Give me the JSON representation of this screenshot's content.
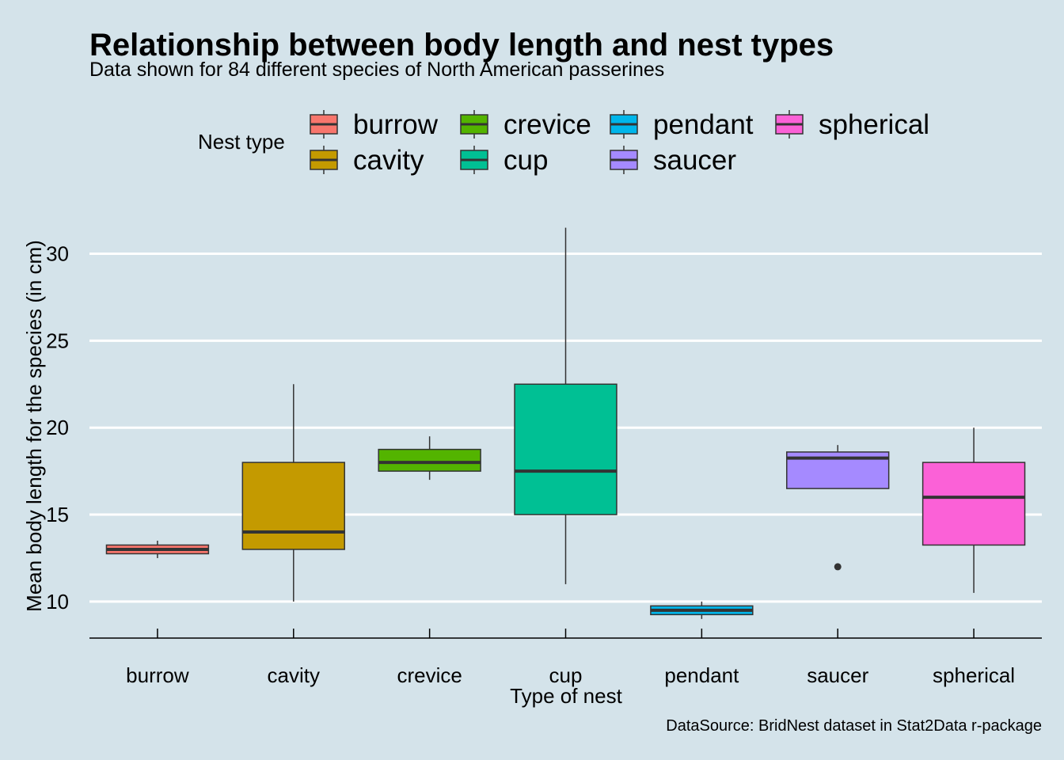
{
  "chart_data": {
    "type": "boxplot",
    "title": "Relationship between body length and nest types",
    "subtitle": "Data shown for 84 different species of North American passerines",
    "caption": "DataSource: BridNest dataset in Stat2Data r-package",
    "xlabel": "Type of nest",
    "ylabel": "Mean body length for the species (in cm)",
    "ylim": [
      7.9,
      32.3
    ],
    "y_ticks": [
      10,
      15,
      20,
      25,
      30
    ],
    "grid": "horizontal-major",
    "legend": {
      "title": "Nest type",
      "position": "top"
    },
    "categories": [
      "burrow",
      "cavity",
      "crevice",
      "cup",
      "pendant",
      "saucer",
      "spherical"
    ],
    "colors": [
      "#F8766D",
      "#C49A00",
      "#53B400",
      "#00C094",
      "#00B6EB",
      "#A58AFF",
      "#FB61D7"
    ],
    "boxes": [
      {
        "category": "burrow",
        "min": 12.5,
        "q1": 12.75,
        "median": 13.0,
        "q3": 13.25,
        "max": 13.5,
        "outliers": []
      },
      {
        "category": "cavity",
        "min": 10.0,
        "q1": 13.0,
        "median": 14.0,
        "q3": 18.0,
        "max": 22.5,
        "outliers": []
      },
      {
        "category": "crevice",
        "min": 17.0,
        "q1": 17.5,
        "median": 18.0,
        "q3": 18.75,
        "max": 19.5,
        "outliers": []
      },
      {
        "category": "cup",
        "min": 11.0,
        "q1": 15.0,
        "median": 17.5,
        "q3": 22.5,
        "max": 31.5,
        "outliers": []
      },
      {
        "category": "pendant",
        "min": 9.0,
        "q1": 9.25,
        "median": 9.5,
        "q3": 9.75,
        "max": 10.0,
        "outliers": []
      },
      {
        "category": "saucer",
        "min": 16.5,
        "q1": 16.5,
        "median": 18.25,
        "q3": 18.6,
        "max": 19.0,
        "outliers": [
          12.0
        ]
      },
      {
        "category": "spherical",
        "min": 10.5,
        "q1": 13.25,
        "median": 16.0,
        "q3": 18.0,
        "max": 20.0,
        "outliers": []
      }
    ]
  }
}
